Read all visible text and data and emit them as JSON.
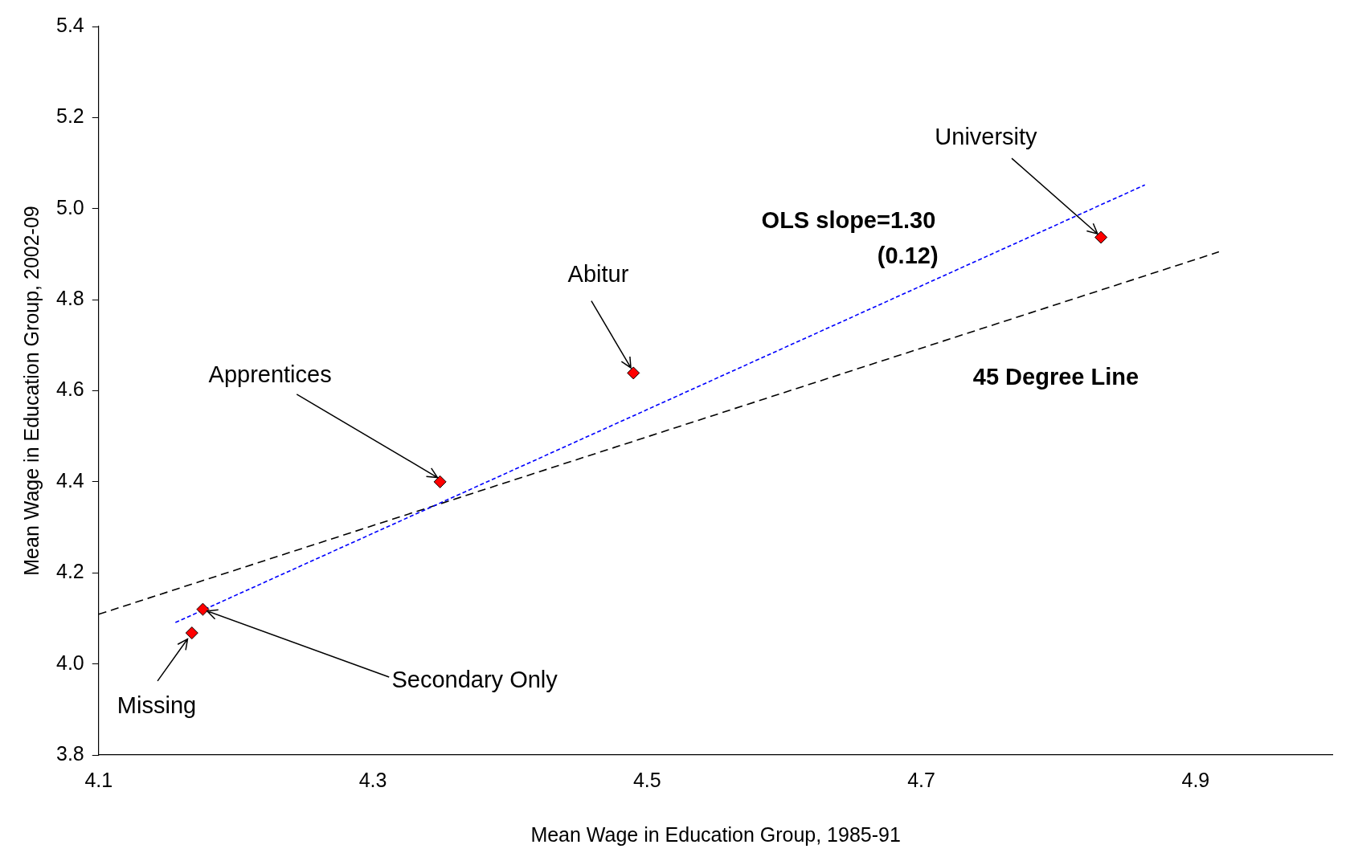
{
  "chart_data": {
    "type": "scatter",
    "xlabel": "Mean Wage in Education Group, 1985-91",
    "ylabel": "Mean Wage in Education Group, 2002-09",
    "xlim": [
      4.1,
      5.0
    ],
    "xticks": [
      4.1,
      4.3,
      4.5,
      4.7,
      4.9
    ],
    "ylim": [
      3.8,
      5.4
    ],
    "yticks": [
      3.8,
      {
        "value": 4.0,
        "label": "4.0"
      },
      4.2,
      4.4,
      4.6,
      4.8,
      {
        "value": 5.0,
        "label": "5.0"
      },
      5.2,
      5.4
    ],
    "grid": false,
    "legend": false,
    "series": [
      {
        "color": "#ff0000",
        "marker": "diamond",
        "x": [
          4.168,
          4.176,
          4.349,
          4.49,
          4.831
        ],
        "values": [
          4.068,
          4.12,
          4.4,
          4.639,
          4.937
        ]
      },
      {
        "type": "line",
        "color": "#0000ff",
        "line_style": "dotted",
        "marker": "none",
        "x": [
          4.156,
          4.863
        ],
        "values": [
          4.091,
          5.052
        ]
      },
      {
        "type": "line",
        "color": "#000000",
        "line_style": "dashed",
        "marker": "none",
        "x": [
          4.1,
          4.917
        ],
        "values": [
          4.109,
          4.905
        ]
      }
    ],
    "annotations": [
      {
        "text": "Missing",
        "x": 4.168,
        "y": 4.068
      },
      {
        "text": "Secondary Only",
        "x": 4.176,
        "y": 4.12
      },
      {
        "text": "Apprentices",
        "x": 4.349,
        "y": 4.4
      },
      {
        "text": "Abitur",
        "x": 4.49,
        "y": 4.639
      },
      {
        "text": "University",
        "x": 4.831,
        "y": 4.937
      },
      "OLS slope=1.30",
      "(0.12)",
      "45 Degree Line"
    ]
  }
}
